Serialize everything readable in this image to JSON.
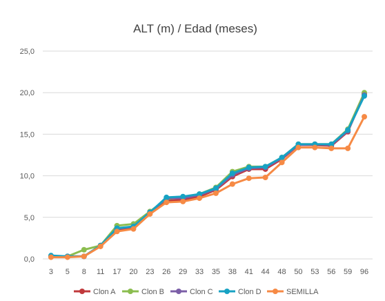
{
  "chart_data": {
    "type": "line",
    "title": "ALT (m) / Edad (meses)",
    "xlabel": "",
    "ylabel": "",
    "categories": [
      "3",
      "5",
      "8",
      "11",
      "17",
      "20",
      "23",
      "26",
      "29",
      "33",
      "35",
      "38",
      "41",
      "44",
      "48",
      "50",
      "53",
      "56",
      "59",
      "96"
    ],
    "y_ticks": [
      "0,0",
      "5,0",
      "10,0",
      "15,0",
      "20,0",
      "25,0"
    ],
    "ylim": [
      0,
      25
    ],
    "grid": true,
    "legend_position": "bottom",
    "series": [
      {
        "name": "Clon A",
        "color": "#c0393b",
        "values": [
          0.3,
          0.3,
          0.3,
          1.6,
          3.5,
          3.8,
          5.6,
          7.0,
          7.1,
          7.5,
          8.3,
          9.9,
          10.8,
          10.8,
          12.0,
          13.7,
          13.7,
          13.6,
          15.3,
          19.9
        ]
      },
      {
        "name": "Clon B",
        "color": "#8bbd4f",
        "values": [
          0.3,
          0.3,
          1.1,
          1.6,
          4.0,
          4.2,
          5.7,
          7.2,
          7.4,
          7.8,
          8.6,
          10.5,
          11.1,
          11.1,
          12.2,
          13.8,
          13.8,
          13.8,
          15.6,
          20.0
        ]
      },
      {
        "name": "Clon C",
        "color": "#7b5ea7",
        "values": [
          0.3,
          0.3,
          0.3,
          1.6,
          3.6,
          3.9,
          5.6,
          7.3,
          7.3,
          7.7,
          8.4,
          10.1,
          10.9,
          11.0,
          12.1,
          13.7,
          13.8,
          13.7,
          15.4,
          19.7
        ]
      },
      {
        "name": "Clon D",
        "color": "#17a2c3",
        "values": [
          0.4,
          0.3,
          0.3,
          1.6,
          3.7,
          3.9,
          5.6,
          7.4,
          7.5,
          7.8,
          8.5,
          10.3,
          11.0,
          11.1,
          12.2,
          13.8,
          13.8,
          13.8,
          15.5,
          19.6
        ]
      },
      {
        "name": "SEMILLA",
        "color": "#f68a45",
        "values": [
          0.2,
          0.2,
          0.3,
          1.5,
          3.3,
          3.6,
          5.4,
          6.8,
          6.9,
          7.3,
          7.9,
          9.0,
          9.7,
          9.8,
          11.6,
          13.4,
          13.4,
          13.3,
          13.3,
          17.1
        ]
      }
    ]
  }
}
